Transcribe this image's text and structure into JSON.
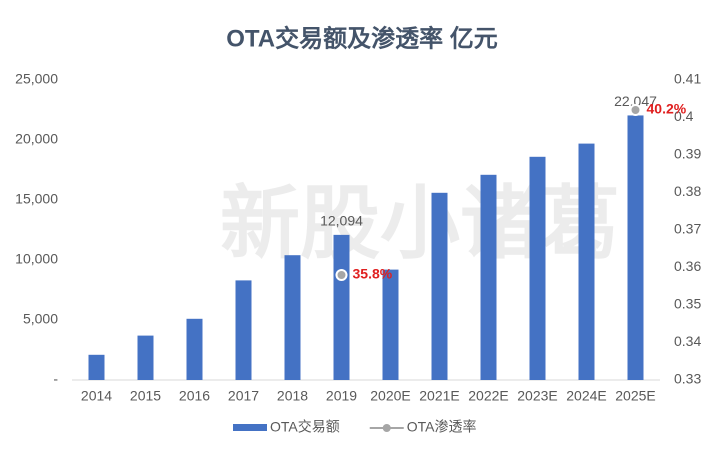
{
  "chart_data": {
    "type": "bar_line",
    "title": "OTA交易额及渗透率 亿元",
    "watermark": "新股小诸葛",
    "categories": [
      "2014",
      "2015",
      "2016",
      "2017",
      "2018",
      "2019",
      "2020E",
      "2021E",
      "2022E",
      "2023E",
      "2024E",
      "2025E"
    ],
    "series": [
      {
        "name": "OTA交易额",
        "color": "#4472c4",
        "type": "bar",
        "values": [
          2100,
          3700,
          5100,
          8300,
          10400,
          12094,
          9200,
          15600,
          17100,
          18600,
          19700,
          22047
        ],
        "value_labels": [
          null,
          null,
          null,
          null,
          null,
          "12,094",
          null,
          null,
          null,
          null,
          null,
          "22,047"
        ]
      },
      {
        "name": "OTA渗透率",
        "color": "#a6a6a6",
        "type": "line",
        "axis": "y2",
        "values": [
          null,
          null,
          null,
          null,
          null,
          0.358,
          null,
          null,
          null,
          null,
          null,
          0.402
        ],
        "value_labels": [
          null,
          null,
          null,
          null,
          null,
          "35.8%",
          null,
          null,
          null,
          null,
          null,
          "40.2%"
        ]
      }
    ],
    "ylim": [
      0,
      25000
    ],
    "yticks": [
      {
        "value": 0,
        "label": "-"
      },
      {
        "value": 5000,
        "label": "5,000"
      },
      {
        "value": 10000,
        "label": "10,000"
      },
      {
        "value": 15000,
        "label": "15,000"
      },
      {
        "value": 20000,
        "label": "20,000"
      },
      {
        "value": 25000,
        "label": "25,000"
      }
    ],
    "y2lim": [
      0.33,
      0.41
    ],
    "y2ticks": [
      0.33,
      0.34,
      0.35,
      0.36,
      0.37,
      0.38,
      0.39,
      0.4,
      0.41
    ],
    "grid": false,
    "legend": "bottom"
  }
}
